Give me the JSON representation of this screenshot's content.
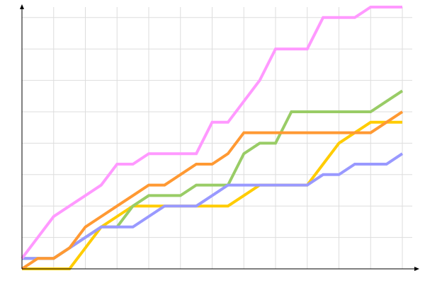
{
  "chart_data": {
    "type": "line",
    "title": "",
    "xlabel": "",
    "ylabel": "",
    "x": [
      0,
      1,
      2,
      3,
      4,
      5,
      6,
      7,
      8,
      9,
      10,
      11,
      12,
      13,
      14,
      15,
      16,
      17,
      18,
      19,
      20,
      21,
      22,
      23,
      24
    ],
    "xlim": [
      0,
      24
    ],
    "ylim": [
      0,
      25
    ],
    "x_grid_step": 2,
    "y_grid_step": 3,
    "grid": true,
    "legend": "none",
    "series": [
      {
        "color": "#ffcc00",
        "values": [
          0,
          0,
          0,
          0,
          2,
          4,
          5,
          6,
          6,
          6,
          6,
          6,
          6,
          6,
          7,
          8,
          8,
          8,
          8,
          10,
          12,
          13,
          14,
          14,
          14
        ]
      },
      {
        "color": "#99cc66",
        "values": [
          1,
          1,
          1,
          2,
          3,
          4,
          4,
          6,
          7,
          7,
          7,
          8,
          8,
          8,
          11,
          12,
          12,
          15,
          15,
          15,
          15,
          15,
          15,
          16,
          17
        ]
      },
      {
        "color": "#9999ff",
        "values": [
          1,
          1,
          1,
          2,
          3,
          4,
          4,
          4,
          5,
          6,
          6,
          6,
          7,
          8,
          8,
          8,
          8,
          8,
          8,
          9,
          9,
          10,
          10,
          10,
          11
        ]
      },
      {
        "color": "#ff9933",
        "values": [
          0,
          1,
          1,
          2,
          4,
          5,
          6,
          7,
          8,
          8,
          9,
          10,
          10,
          11,
          13,
          13,
          13,
          13,
          13,
          13,
          13,
          13,
          13,
          14,
          15
        ]
      },
      {
        "color": "#ff99ff",
        "values": [
          1,
          3,
          5,
          6,
          7,
          8,
          10,
          10,
          11,
          11,
          11,
          11,
          14,
          14,
          16,
          18,
          21,
          21,
          21,
          24,
          24,
          24,
          25,
          25,
          25
        ]
      }
    ]
  }
}
